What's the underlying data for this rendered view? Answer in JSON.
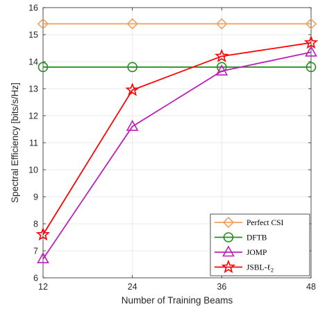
{
  "chart_data": {
    "type": "line",
    "xlabel": "Number of Training Beams",
    "ylabel": "Spectral Efficiency [bits/s/Hz]",
    "x": [
      12,
      24,
      36,
      48
    ],
    "xlim": [
      12,
      48
    ],
    "ylim": [
      6,
      16
    ],
    "xticks": [
      "12",
      "24",
      "36",
      "48"
    ],
    "yticks": [
      "6",
      "7",
      "8",
      "9",
      "10",
      "11",
      "12",
      "13",
      "14",
      "15",
      "16"
    ],
    "grid": true,
    "legend_position": "bottom-right",
    "series": [
      {
        "name": "Perfect CSI",
        "values": [
          15.4,
          15.4,
          15.4,
          15.4
        ],
        "color": "#EDA15F",
        "marker": "diamond"
      },
      {
        "name": "DFTB",
        "values": [
          13.8,
          13.8,
          13.8,
          13.8
        ],
        "color": "#1E8F1E",
        "marker": "circle"
      },
      {
        "name": "JOMP",
        "values": [
          6.7,
          11.6,
          13.65,
          14.35
        ],
        "color": "#BE1EB4",
        "marker": "triangle"
      },
      {
        "name": "JSBL-ℓ",
        "name_subscript": "2",
        "values": [
          7.6,
          12.95,
          14.2,
          14.7
        ],
        "color": "#FF0000",
        "marker": "star"
      }
    ]
  }
}
